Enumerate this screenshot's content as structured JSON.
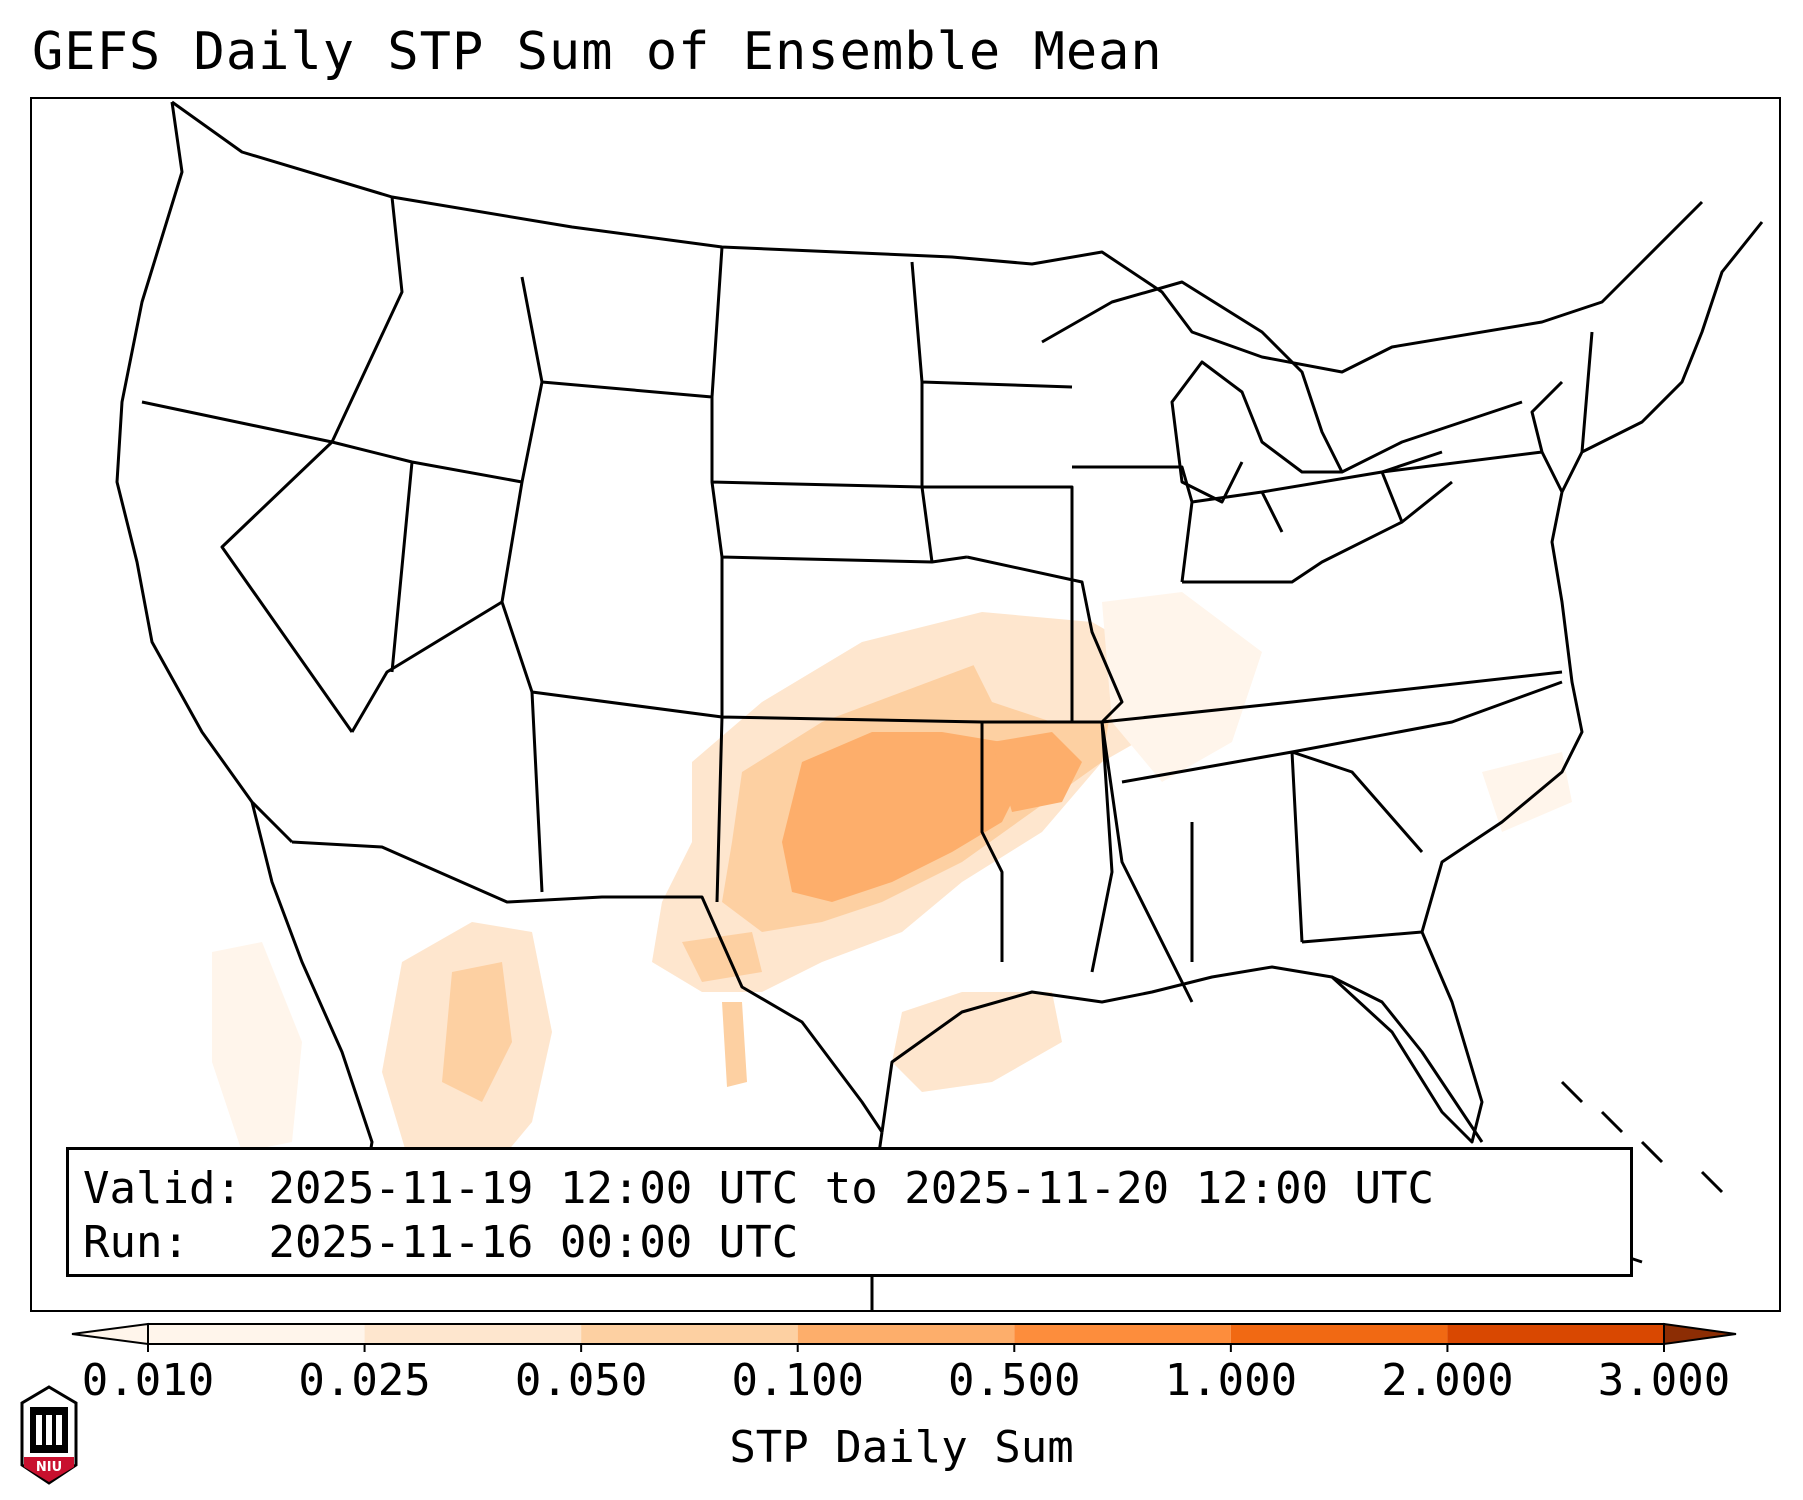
{
  "title": "GEFS Daily STP Sum of Ensemble Mean",
  "info": {
    "valid_label": "Valid:",
    "valid_value": "2025-11-19 12:00 UTC to 2025-11-20 12:00 UTC",
    "run_label": "Run:",
    "run_value": "2025-11-16 00:00 UTC"
  },
  "colorbar": {
    "label": "STP Daily Sum",
    "ticks": [
      "0.010",
      "0.025",
      "0.050",
      "0.100",
      "0.500",
      "1.000",
      "2.000",
      "3.000"
    ],
    "colors": [
      "#fff5eb",
      "#fee6ce",
      "#fdd0a2",
      "#fdae6b",
      "#fd8d3c",
      "#f16913",
      "#d94801",
      "#8c2d04"
    ]
  },
  "logo": {
    "name": "niu-logo",
    "text": "NIU"
  }
}
